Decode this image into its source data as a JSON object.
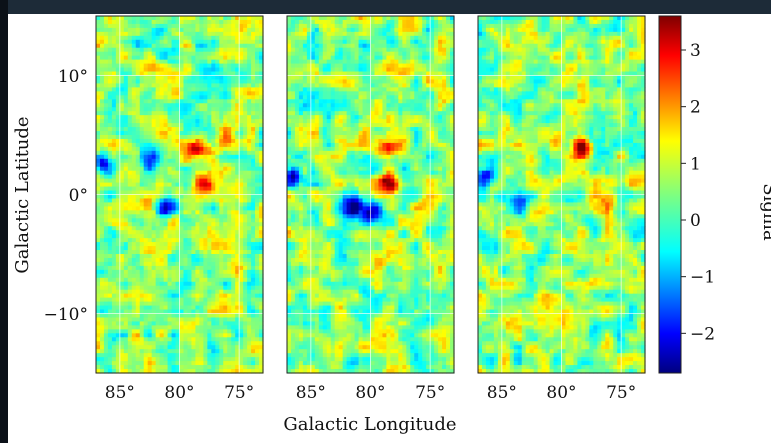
{
  "chart_data": {
    "type": "heatmap",
    "panels": 3,
    "xlabel": "Galactic Longitude",
    "ylabel": "Galactic Latitude",
    "x_ticks": [
      "85°",
      "80°",
      "75°"
    ],
    "x_tick_values": [
      85,
      80,
      75
    ],
    "y_ticks": [
      "10°",
      "0°",
      "−10°"
    ],
    "y_tick_values": [
      10,
      0,
      -10
    ],
    "xlim": [
      87,
      73
    ],
    "ylim": [
      -15,
      15
    ],
    "grid": true,
    "colorbar": {
      "label": "Sigma",
      "ticks": [
        "−2",
        "−1",
        "0",
        "1",
        "2",
        "3"
      ],
      "tick_values": [
        -2,
        -1,
        0,
        1,
        2,
        3
      ],
      "range": [
        -2.7,
        3.6
      ],
      "colormap": "jet"
    },
    "hotspots": [
      {
        "panel": 0,
        "l": 78.4,
        "b": 3.8,
        "sigma": 3.6
      },
      {
        "panel": 0,
        "l": 78.0,
        "b": 1.0,
        "sigma": 3.0
      },
      {
        "panel": 0,
        "l": 76.0,
        "b": 5.0,
        "sigma": 2.2
      },
      {
        "panel": 1,
        "l": 78.4,
        "b": 4.0,
        "sigma": 3.3
      },
      {
        "panel": 1,
        "l": 78.5,
        "b": 1.0,
        "sigma": 3.0
      },
      {
        "panel": 1,
        "l": 75.0,
        "b": -1.0,
        "sigma": 2.0
      },
      {
        "panel": 2,
        "l": 78.3,
        "b": 3.8,
        "sigma": 3.6
      },
      {
        "panel": 2,
        "l": 76.0,
        "b": -0.6,
        "sigma": 1.6
      }
    ],
    "coldspots": [
      {
        "panel": 0,
        "l": 86.5,
        "b": 2.5,
        "sigma": -2.5
      },
      {
        "panel": 0,
        "l": 82.5,
        "b": 3.0,
        "sigma": -2.2
      },
      {
        "panel": 0,
        "l": 81.0,
        "b": -1.0,
        "sigma": -2.0
      },
      {
        "panel": 1,
        "l": 86.5,
        "b": 1.5,
        "sigma": -2.6
      },
      {
        "panel": 1,
        "l": 81.5,
        "b": -1.0,
        "sigma": -2.3
      },
      {
        "panel": 1,
        "l": 79.8,
        "b": -1.5,
        "sigma": -2.0
      },
      {
        "panel": 2,
        "l": 86.3,
        "b": 1.5,
        "sigma": -2.2
      },
      {
        "panel": 2,
        "l": 83.5,
        "b": -1.0,
        "sigma": -1.5
      }
    ]
  }
}
